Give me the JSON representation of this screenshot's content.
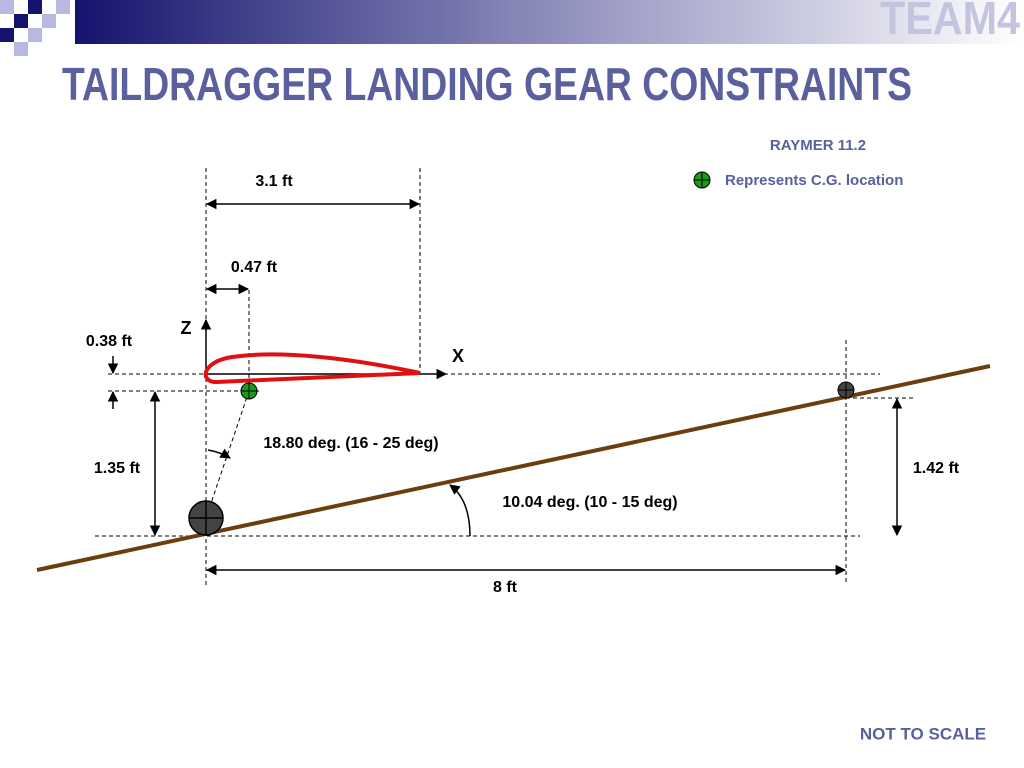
{
  "header": {
    "logo": "TEAM4",
    "title": "TAILDRAGGER LANDING GEAR CONSTRAINTS"
  },
  "legend": {
    "source": "RAYMER 11.2",
    "cg_label": "Represents C.G. location"
  },
  "axes": {
    "z": "Z",
    "x": "X"
  },
  "dimensions": {
    "wing_chord": "3.1 ft",
    "cg_x": "0.47 ft",
    "cg_z": "0.38 ft",
    "main_height": "1.35 ft",
    "tail_height": "1.42 ft",
    "wheelbase": "8 ft"
  },
  "angles": {
    "tip_back": "18.80 deg. (16 - 25 deg)",
    "ground": "10.04 deg. (10 - 15 deg)"
  },
  "footer": {
    "note": "NOT TO SCALE"
  }
}
